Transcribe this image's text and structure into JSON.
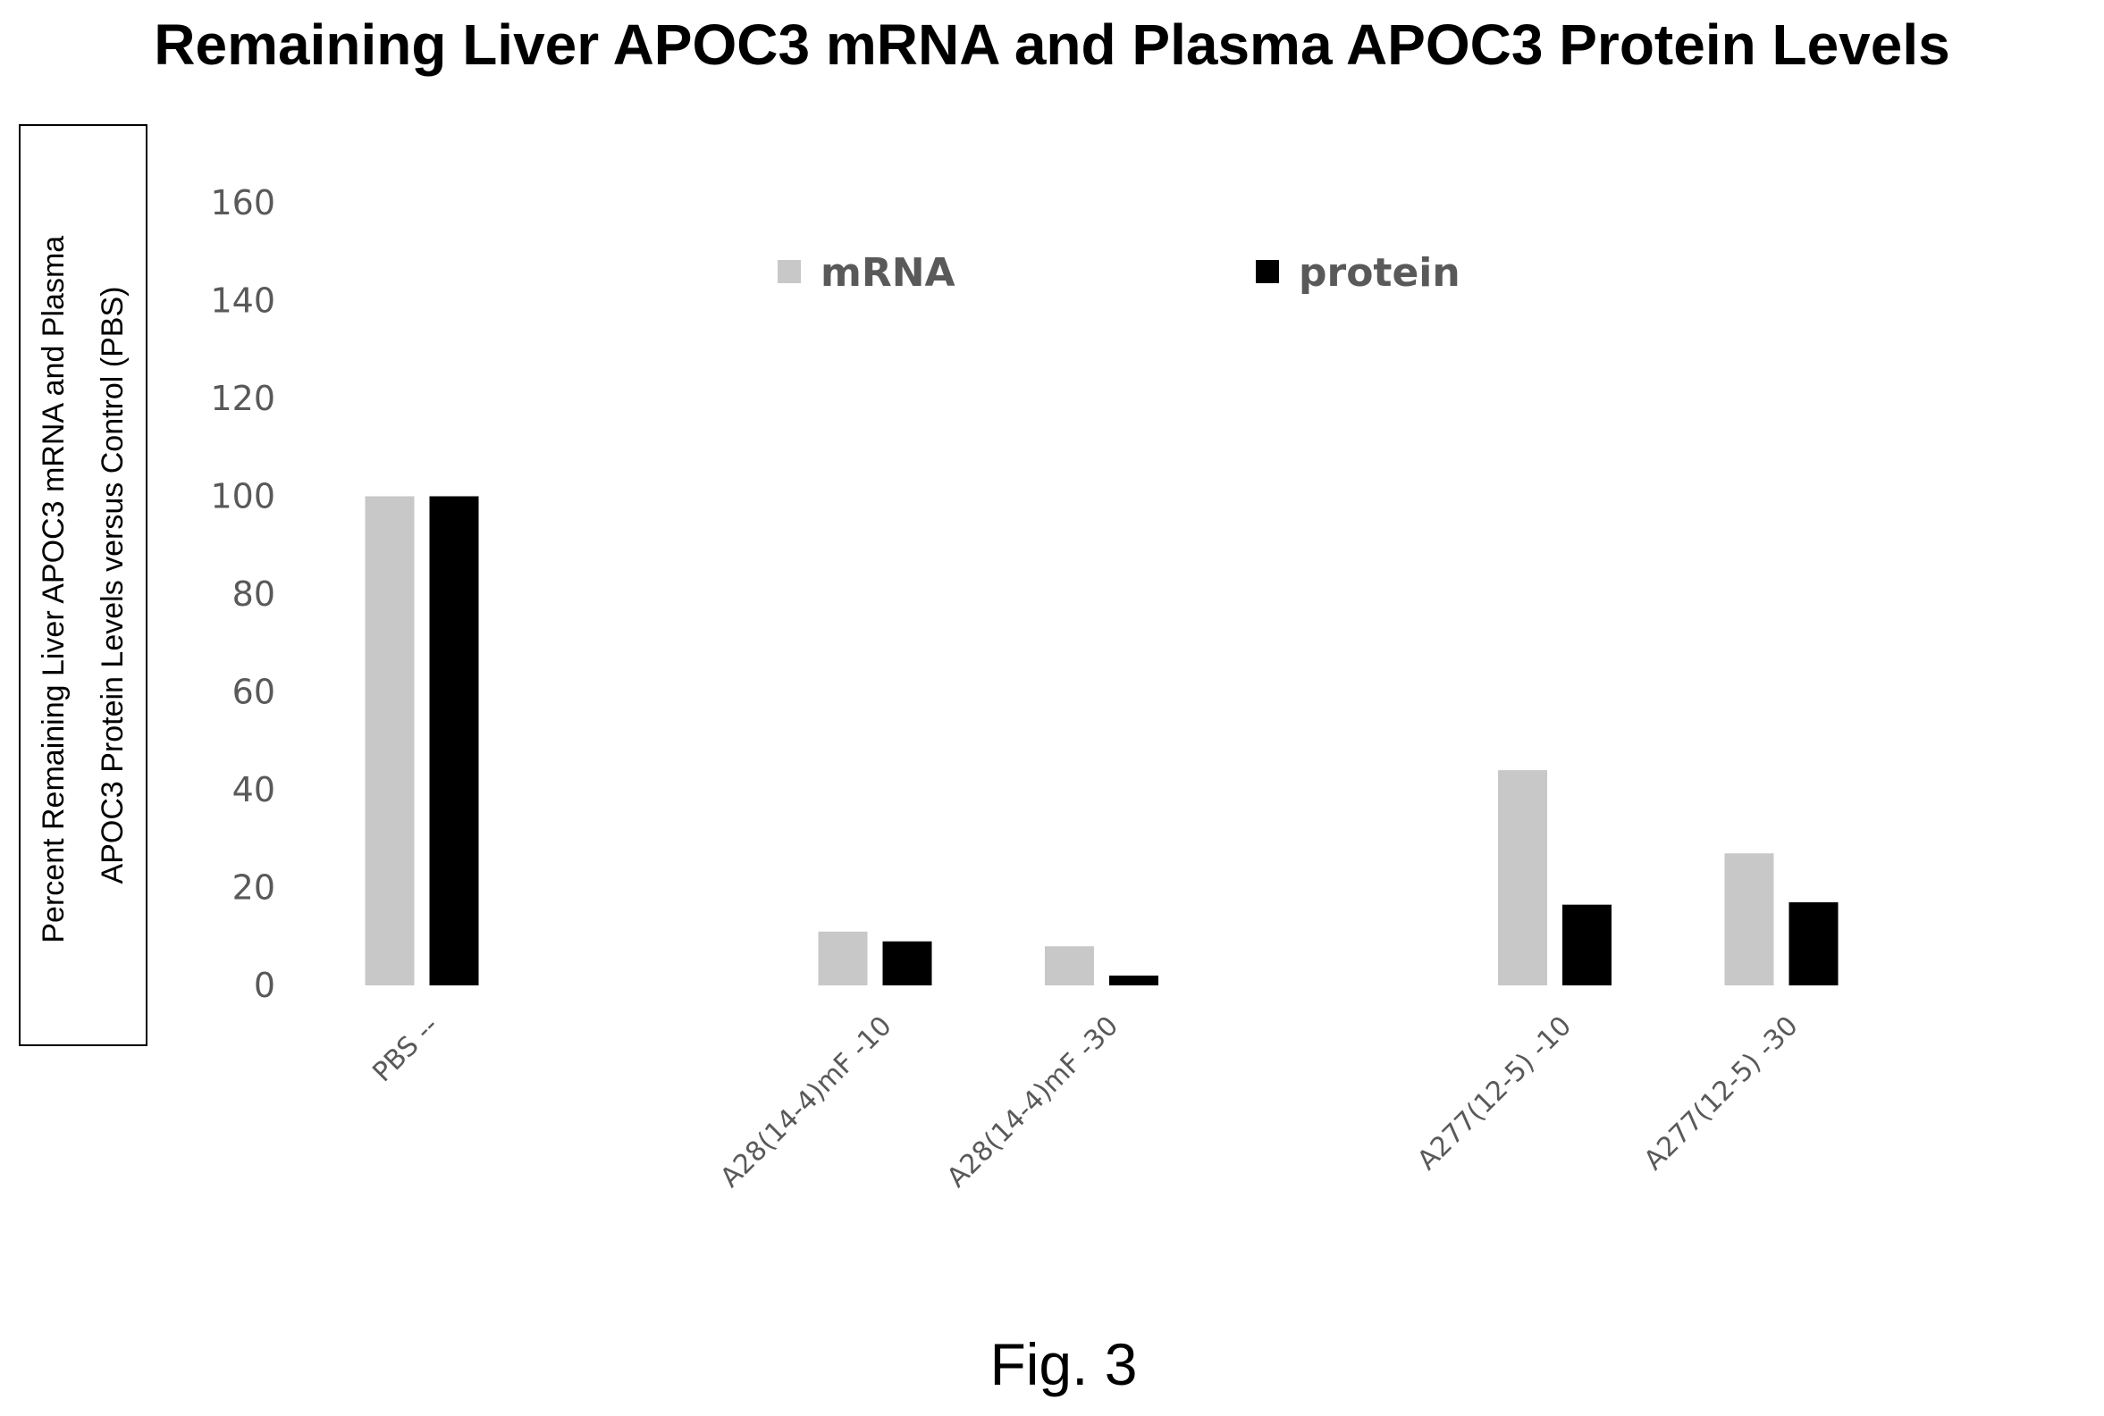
{
  "chart_data": {
    "type": "bar",
    "title": "Remaining Liver APOC3 mRNA and Plasma APOC3 Protein Levels",
    "ylabel_lines": [
      "Percent Remaining Liver APOC3 mRNA and Plasma",
      "APOC3 Protein Levels versus Control (PBS)"
    ],
    "xlabel": "",
    "categories": [
      "PBS --",
      "A28(14-4)mF -10",
      "A28(14-4)mF -30",
      "A277(12-5) -10",
      "A277(12-5) -30"
    ],
    "category_positions": [
      0,
      2,
      3,
      5,
      6
    ],
    "series": [
      {
        "name": "mRNA",
        "color": "#c8c8c8",
        "values": [
          100,
          11,
          8,
          44,
          27
        ]
      },
      {
        "name": "protein",
        "color": "#000000",
        "values": [
          100,
          9,
          2,
          16.5,
          17
        ]
      }
    ],
    "ylim": [
      0,
      160
    ],
    "yticks": [
      0,
      20,
      40,
      60,
      80,
      100,
      120,
      140,
      160
    ],
    "grid": false,
    "legend_position": "top-center"
  },
  "caption": "Fig. 3"
}
